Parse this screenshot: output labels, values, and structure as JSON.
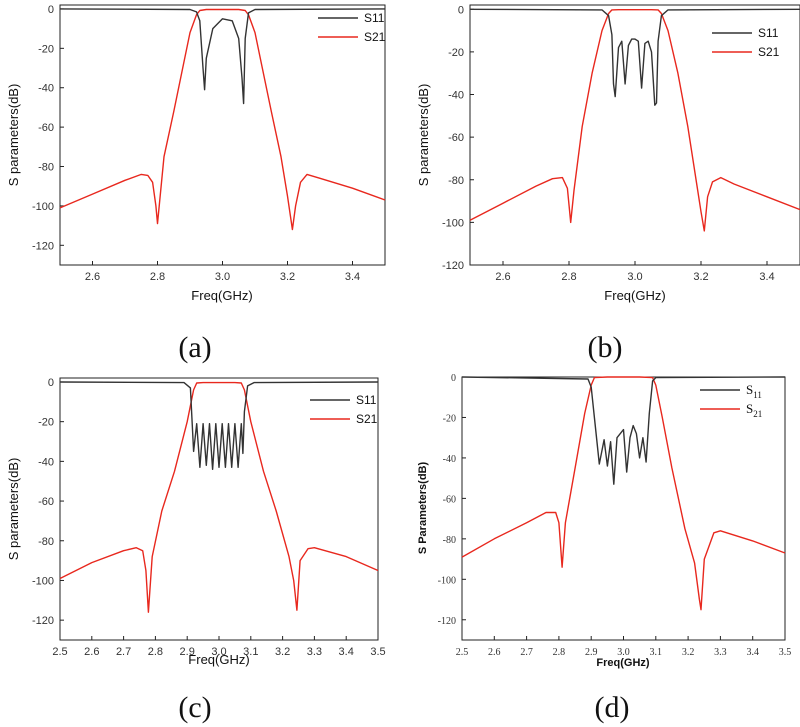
{
  "chart_data": [
    {
      "type": "line",
      "caption": "(a)",
      "xlabel": "Freq(GHz)",
      "ylabel": "S parameters(dB)",
      "xlim": [
        2.5,
        3.5
      ],
      "ylim": [
        -130,
        2
      ],
      "x_ticks": [
        "2.6",
        "2.8",
        "3.0",
        "3.2",
        "3.4"
      ],
      "y_ticks": [
        "0",
        "-20",
        "-40",
        "-60",
        "-80",
        "-100",
        "-120"
      ],
      "passband": [
        2.93,
        3.07
      ],
      "series": [
        {
          "name": "S11",
          "color": "#333333",
          "x": [
            2.5,
            2.9,
            2.92,
            2.93,
            2.94,
            2.945,
            2.95,
            2.97,
            3.0,
            3.03,
            3.05,
            3.06,
            3.065,
            3.07,
            3.08,
            3.1,
            3.5
          ],
          "y": [
            0,
            -0.3,
            -1.5,
            -6,
            -30,
            -41,
            -25,
            -10,
            -5,
            -6,
            -15,
            -35,
            -48,
            -15,
            -2,
            -0.3,
            0
          ]
        },
        {
          "name": "S21",
          "color": "#e8281e",
          "x": [
            2.5,
            2.6,
            2.7,
            2.75,
            2.77,
            2.785,
            2.795,
            2.8,
            2.82,
            2.85,
            2.88,
            2.9,
            2.92,
            2.93,
            2.95,
            3.0,
            3.05,
            3.07,
            3.08,
            3.1,
            3.12,
            3.15,
            3.18,
            3.2,
            3.215,
            3.225,
            3.24,
            3.26,
            3.3,
            3.4,
            3.5
          ],
          "y": [
            -101,
            -94,
            -87,
            -84,
            -84.5,
            -88,
            -100,
            -109,
            -75,
            -52,
            -28,
            -12,
            -3,
            -0.8,
            -0.3,
            -0.3,
            -0.3,
            -0.8,
            -3,
            -12,
            -28,
            -52,
            -75,
            -95,
            -112,
            -100,
            -88,
            -84,
            -86,
            -91,
            -97
          ]
        }
      ]
    },
    {
      "type": "line",
      "caption": "(b)",
      "xlabel": "Freq(GHz)",
      "ylabel": "S parameters(dB)",
      "xlim": [
        2.5,
        3.5
      ],
      "ylim": [
        -120,
        2
      ],
      "x_ticks": [
        "2.6",
        "2.8",
        "3.0",
        "3.2",
        "3.4"
      ],
      "y_ticks": [
        "0",
        "-20",
        "-40",
        "-60",
        "-80",
        "-100",
        "-120"
      ],
      "passband": [
        2.93,
        3.08
      ],
      "series": [
        {
          "name": "S11",
          "color": "#333333",
          "x": [
            2.5,
            2.9,
            2.92,
            2.93,
            2.935,
            2.94,
            2.95,
            2.96,
            2.97,
            2.98,
            2.99,
            3.0,
            3.01,
            3.02,
            3.03,
            3.04,
            3.05,
            3.06,
            3.065,
            3.07,
            3.08,
            3.1,
            3.5
          ],
          "y": [
            0,
            -0.3,
            -3,
            -12,
            -35,
            -41,
            -18,
            -15,
            -35,
            -17,
            -14,
            -14,
            -15,
            -37,
            -16,
            -15,
            -20,
            -45,
            -44,
            -15,
            -3,
            -0.3,
            0
          ]
        },
        {
          "name": "S21",
          "color": "#e8281e",
          "x": [
            2.5,
            2.6,
            2.7,
            2.75,
            2.78,
            2.795,
            2.805,
            2.815,
            2.84,
            2.87,
            2.9,
            2.92,
            2.93,
            2.95,
            3.0,
            3.05,
            3.07,
            3.08,
            3.1,
            3.13,
            3.16,
            3.19,
            3.2,
            3.21,
            3.22,
            3.235,
            3.26,
            3.3,
            3.4,
            3.5
          ],
          "y": [
            -99,
            -91,
            -83,
            -79.5,
            -79,
            -84,
            -100,
            -85,
            -55,
            -30,
            -10,
            -2,
            -0.3,
            -0.2,
            -0.2,
            -0.2,
            -0.3,
            -2,
            -10,
            -30,
            -55,
            -85,
            -95,
            -104,
            -88,
            -81,
            -79,
            -82,
            -88,
            -94
          ]
        }
      ]
    },
    {
      "type": "line",
      "caption": "(c)",
      "xlabel": "Freq(GHz)",
      "ylabel": "S parameters(dB)",
      "xlim": [
        2.5,
        3.5
      ],
      "ylim": [
        -130,
        2
      ],
      "x_ticks": [
        "2.5",
        "2.6",
        "2.7",
        "2.8",
        "2.9",
        "3.0",
        "3.1",
        "3.2",
        "3.3",
        "3.4",
        "3.5"
      ],
      "y_ticks": [
        "0",
        "-20",
        "-40",
        "-60",
        "-80",
        "-100",
        "-120"
      ],
      "passband": [
        2.92,
        3.08
      ],
      "series": [
        {
          "name": "S11",
          "color": "#333333",
          "x": [
            2.5,
            2.89,
            2.91,
            2.92,
            2.93,
            2.94,
            2.95,
            2.96,
            2.97,
            2.98,
            2.99,
            3.0,
            3.01,
            3.02,
            3.03,
            3.04,
            3.05,
            3.06,
            3.07,
            3.075,
            3.08,
            3.09,
            3.11,
            3.5
          ],
          "y": [
            0,
            -0.3,
            -3,
            -35,
            -21,
            -43,
            -21,
            -42,
            -21,
            -44,
            -21,
            -43,
            -21,
            -43,
            -21,
            -43,
            -21,
            -43,
            -21,
            -36,
            -15,
            -2,
            -0.3,
            0
          ]
        },
        {
          "name": "S21",
          "color": "#e8281e",
          "x": [
            2.5,
            2.6,
            2.7,
            2.74,
            2.76,
            2.77,
            2.778,
            2.79,
            2.82,
            2.86,
            2.9,
            2.92,
            2.93,
            2.95,
            3.0,
            3.05,
            3.07,
            3.08,
            3.1,
            3.14,
            3.18,
            3.22,
            3.235,
            3.245,
            3.255,
            3.28,
            3.3,
            3.4,
            3.5
          ],
          "y": [
            -99,
            -91,
            -85,
            -83.5,
            -85,
            -95,
            -116,
            -88,
            -65,
            -45,
            -20,
            -4,
            -0.5,
            -0.3,
            -0.3,
            -0.3,
            -0.5,
            -4,
            -20,
            -45,
            -65,
            -88,
            -100,
            -115,
            -90,
            -84,
            -83.5,
            -88,
            -95
          ]
        }
      ]
    },
    {
      "type": "line",
      "caption": "(d)",
      "xlabel": "Freq(GHz)",
      "ylabel": "S Parameters(dB)",
      "xlim": [
        2.5,
        3.5
      ],
      "ylim": [
        -130,
        0
      ],
      "x_ticks": [
        "2.5",
        "2.6",
        "2.7",
        "2.8",
        "2.9",
        "3.0",
        "3.1",
        "3.2",
        "3.3",
        "3.4",
        "3.5"
      ],
      "y_ticks": [
        "0",
        "-20",
        "-40",
        "-60",
        "-80",
        "-100",
        "-120"
      ],
      "passband": [
        2.91,
        3.09
      ],
      "series": [
        {
          "name": "S11",
          "legend_main": "S",
          "legend_sub": "11",
          "color": "#333333",
          "x": [
            2.5,
            2.89,
            2.9,
            2.91,
            2.925,
            2.94,
            2.95,
            2.96,
            2.97,
            2.98,
            2.99,
            3.0,
            3.01,
            3.02,
            3.03,
            3.04,
            3.05,
            3.06,
            3.07,
            3.08,
            3.09,
            3.1,
            3.5
          ],
          "y": [
            0,
            -1,
            -5,
            -20,
            -43,
            -31,
            -44,
            -32,
            -53,
            -30,
            -28,
            -26,
            -47,
            -30,
            -24,
            -28,
            -40,
            -30,
            -42,
            -18,
            -2,
            -0.3,
            0
          ]
        },
        {
          "name": "S21",
          "legend_main": "S",
          "legend_sub": "21",
          "color": "#e8281e",
          "x": [
            2.5,
            2.6,
            2.7,
            2.76,
            2.79,
            2.8,
            2.81,
            2.82,
            2.85,
            2.88,
            2.9,
            2.91,
            2.95,
            3.0,
            3.05,
            3.09,
            3.1,
            3.12,
            3.15,
            3.19,
            3.22,
            3.235,
            3.24,
            3.25,
            3.28,
            3.3,
            3.4,
            3.5
          ],
          "y": [
            -89,
            -80,
            -72,
            -67,
            -67,
            -72,
            -94,
            -72,
            -45,
            -18,
            -4,
            -0.3,
            0,
            0,
            0,
            -0.3,
            -4,
            -20,
            -45,
            -75,
            -92,
            -110,
            -115,
            -90,
            -77,
            -76,
            -81,
            -87
          ]
        }
      ]
    }
  ]
}
